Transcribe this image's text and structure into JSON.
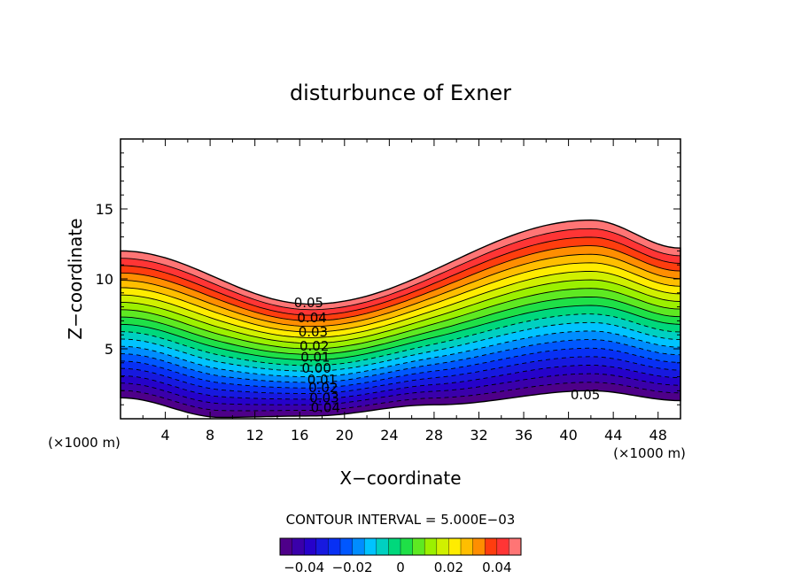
{
  "chart_data": {
    "type": "contour",
    "title": "disturbunce of Exner",
    "xlabel": "X−coordinate",
    "ylabel": "Z−coordinate",
    "x_unit": "(×1000 m)",
    "y_unit": "(×1000 m)",
    "xlim": [
      0,
      50
    ],
    "ylim": [
      0,
      20
    ],
    "xticks": [
      4,
      8,
      12,
      16,
      20,
      24,
      28,
      32,
      36,
      40,
      44,
      48
    ],
    "yticks": [
      5,
      10,
      15
    ],
    "contour_interval_text": "CONTOUR INTERVAL = 5.000E−03",
    "levels": {
      "min": -0.05,
      "max": 0.05,
      "step": 0.005
    },
    "negative_contours_dashed": true,
    "terrain_like_domain": {
      "bottom_surface": [
        [
          0,
          1.5
        ],
        [
          9,
          0.1
        ],
        [
          17,
          0.2
        ],
        [
          28,
          1.0
        ],
        [
          42,
          2.0
        ],
        [
          50,
          1.3
        ]
      ],
      "top_surface": [
        [
          0,
          12.0
        ],
        [
          17,
          8.2
        ],
        [
          42,
          14.2
        ],
        [
          50,
          12.2
        ]
      ]
    },
    "contour_labels": [
      {
        "text": "0.05",
        "x": 16.8,
        "y": 8.3
      },
      {
        "text": "0.04",
        "x": 17.1,
        "y": 7.2
      },
      {
        "text": "0.03",
        "x": 17.2,
        "y": 6.2
      },
      {
        "text": "0.02",
        "x": 17.3,
        "y": 5.2
      },
      {
        "text": "0.01",
        "x": 17.4,
        "y": 4.4
      },
      {
        "text": "0.00",
        "x": 17.5,
        "y": 3.6
      },
      {
        "text": "0.01",
        "x": 18.0,
        "y": 2.8
      },
      {
        "text": "0.02",
        "x": 18.1,
        "y": 2.2
      },
      {
        "text": "0.03",
        "x": 18.2,
        "y": 1.5
      },
      {
        "text": "0.04",
        "x": 18.3,
        "y": 0.8
      },
      {
        "text": "0.05",
        "x": 41.5,
        "y": 1.7
      }
    ],
    "colorbar": {
      "ticks": [
        {
          "value": -0.04,
          "label": "−0.04"
        },
        {
          "value": -0.02,
          "label": "−0.02"
        },
        {
          "value": 0,
          "label": "0"
        },
        {
          "value": 0.02,
          "label": "0.02"
        },
        {
          "value": 0.04,
          "label": "0.04"
        }
      ]
    }
  }
}
